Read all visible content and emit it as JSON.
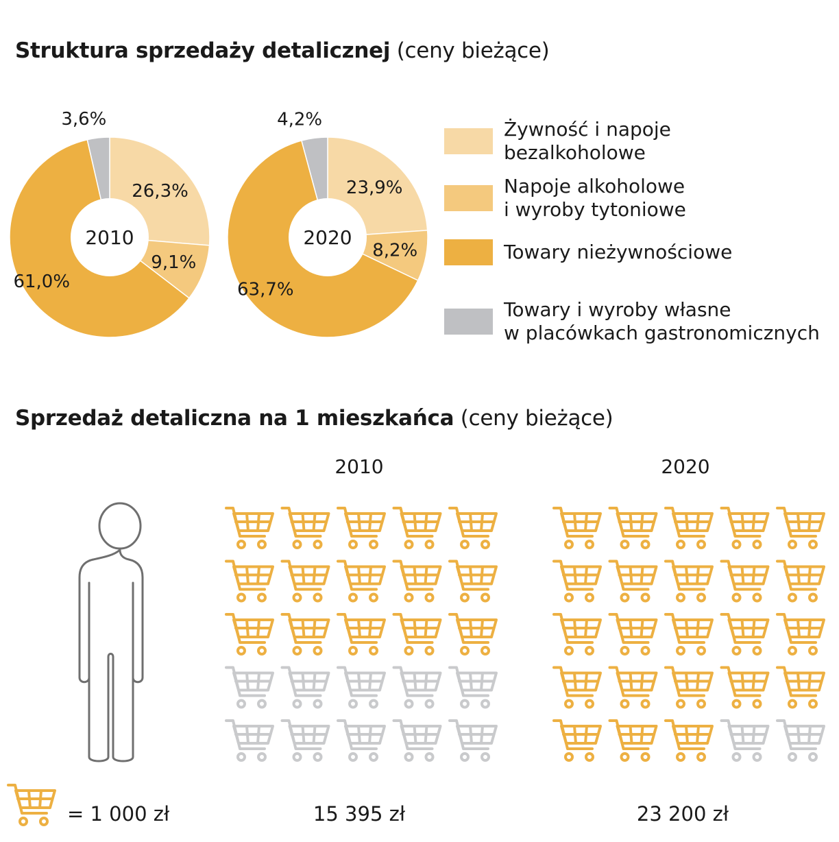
{
  "section1": {
    "title_bold": "Struktura sprzedaży detalicznej",
    "title_light": "(ceny bieżące)"
  },
  "section2": {
    "title_bold": "Sprzedaż detaliczna na 1 mieszkańca",
    "title_light": "(ceny bieżące)"
  },
  "legend": [
    {
      "label": "Żywność i napoje\nbezalkoholowe",
      "color": "#f7d9a6"
    },
    {
      "label": "Napoje alkoholowe\ni wyroby tytoniowe",
      "color": "#f4c97e"
    },
    {
      "label": "Towary nieżywnościowe",
      "color": "#edb042"
    },
    {
      "label": "Towary i wyroby własne\nw placówkach gastronomicznych",
      "color": "#bfc0c3"
    }
  ],
  "chart_data": [
    {
      "type": "pie",
      "center_label": "2010",
      "slices": [
        {
          "category": "Żywność i napoje bezalkoholowe",
          "value": 26.3,
          "label": "26,3%"
        },
        {
          "category": "Napoje alkoholowe i wyroby tytoniowe",
          "value": 9.1,
          "label": "9,1%"
        },
        {
          "category": "Towary nieżywnościowe",
          "value": 61.0,
          "label": "61,0%"
        },
        {
          "category": "Towary i wyroby własne w placówkach gastronomicznych",
          "value": 3.6,
          "label": "3,6%"
        }
      ]
    },
    {
      "type": "pie",
      "center_label": "2020",
      "slices": [
        {
          "category": "Żywność i napoje bezalkoholowe",
          "value": 23.9,
          "label": "23,9%"
        },
        {
          "category": "Napoje alkoholowe i wyroby tytoniowe",
          "value": 8.2,
          "label": "8,2%"
        },
        {
          "category": "Towary nieżywnościowe",
          "value": 63.7,
          "label": "63,7%"
        },
        {
          "category": "Towary i wyroby własne w placówkach gastronomicznych",
          "value": 4.2,
          "label": "4,2%"
        }
      ]
    },
    {
      "type": "pictogram",
      "unit": "= 1 000 zł",
      "unit_value": 1000,
      "columns_per_row": 5,
      "icons_shown": 25,
      "series": [
        {
          "year": "2010",
          "value": 15395,
          "label": "15 395 zł"
        },
        {
          "year": "2020",
          "value": 23200,
          "label": "23 200 zł"
        }
      ]
    }
  ],
  "colors": {
    "cart_active": "#edb042",
    "cart_inactive": "#c9cacc",
    "person_outline": "#6f6f6f"
  },
  "icons": {
    "cart": "shopping-cart-icon",
    "person": "person-icon"
  }
}
